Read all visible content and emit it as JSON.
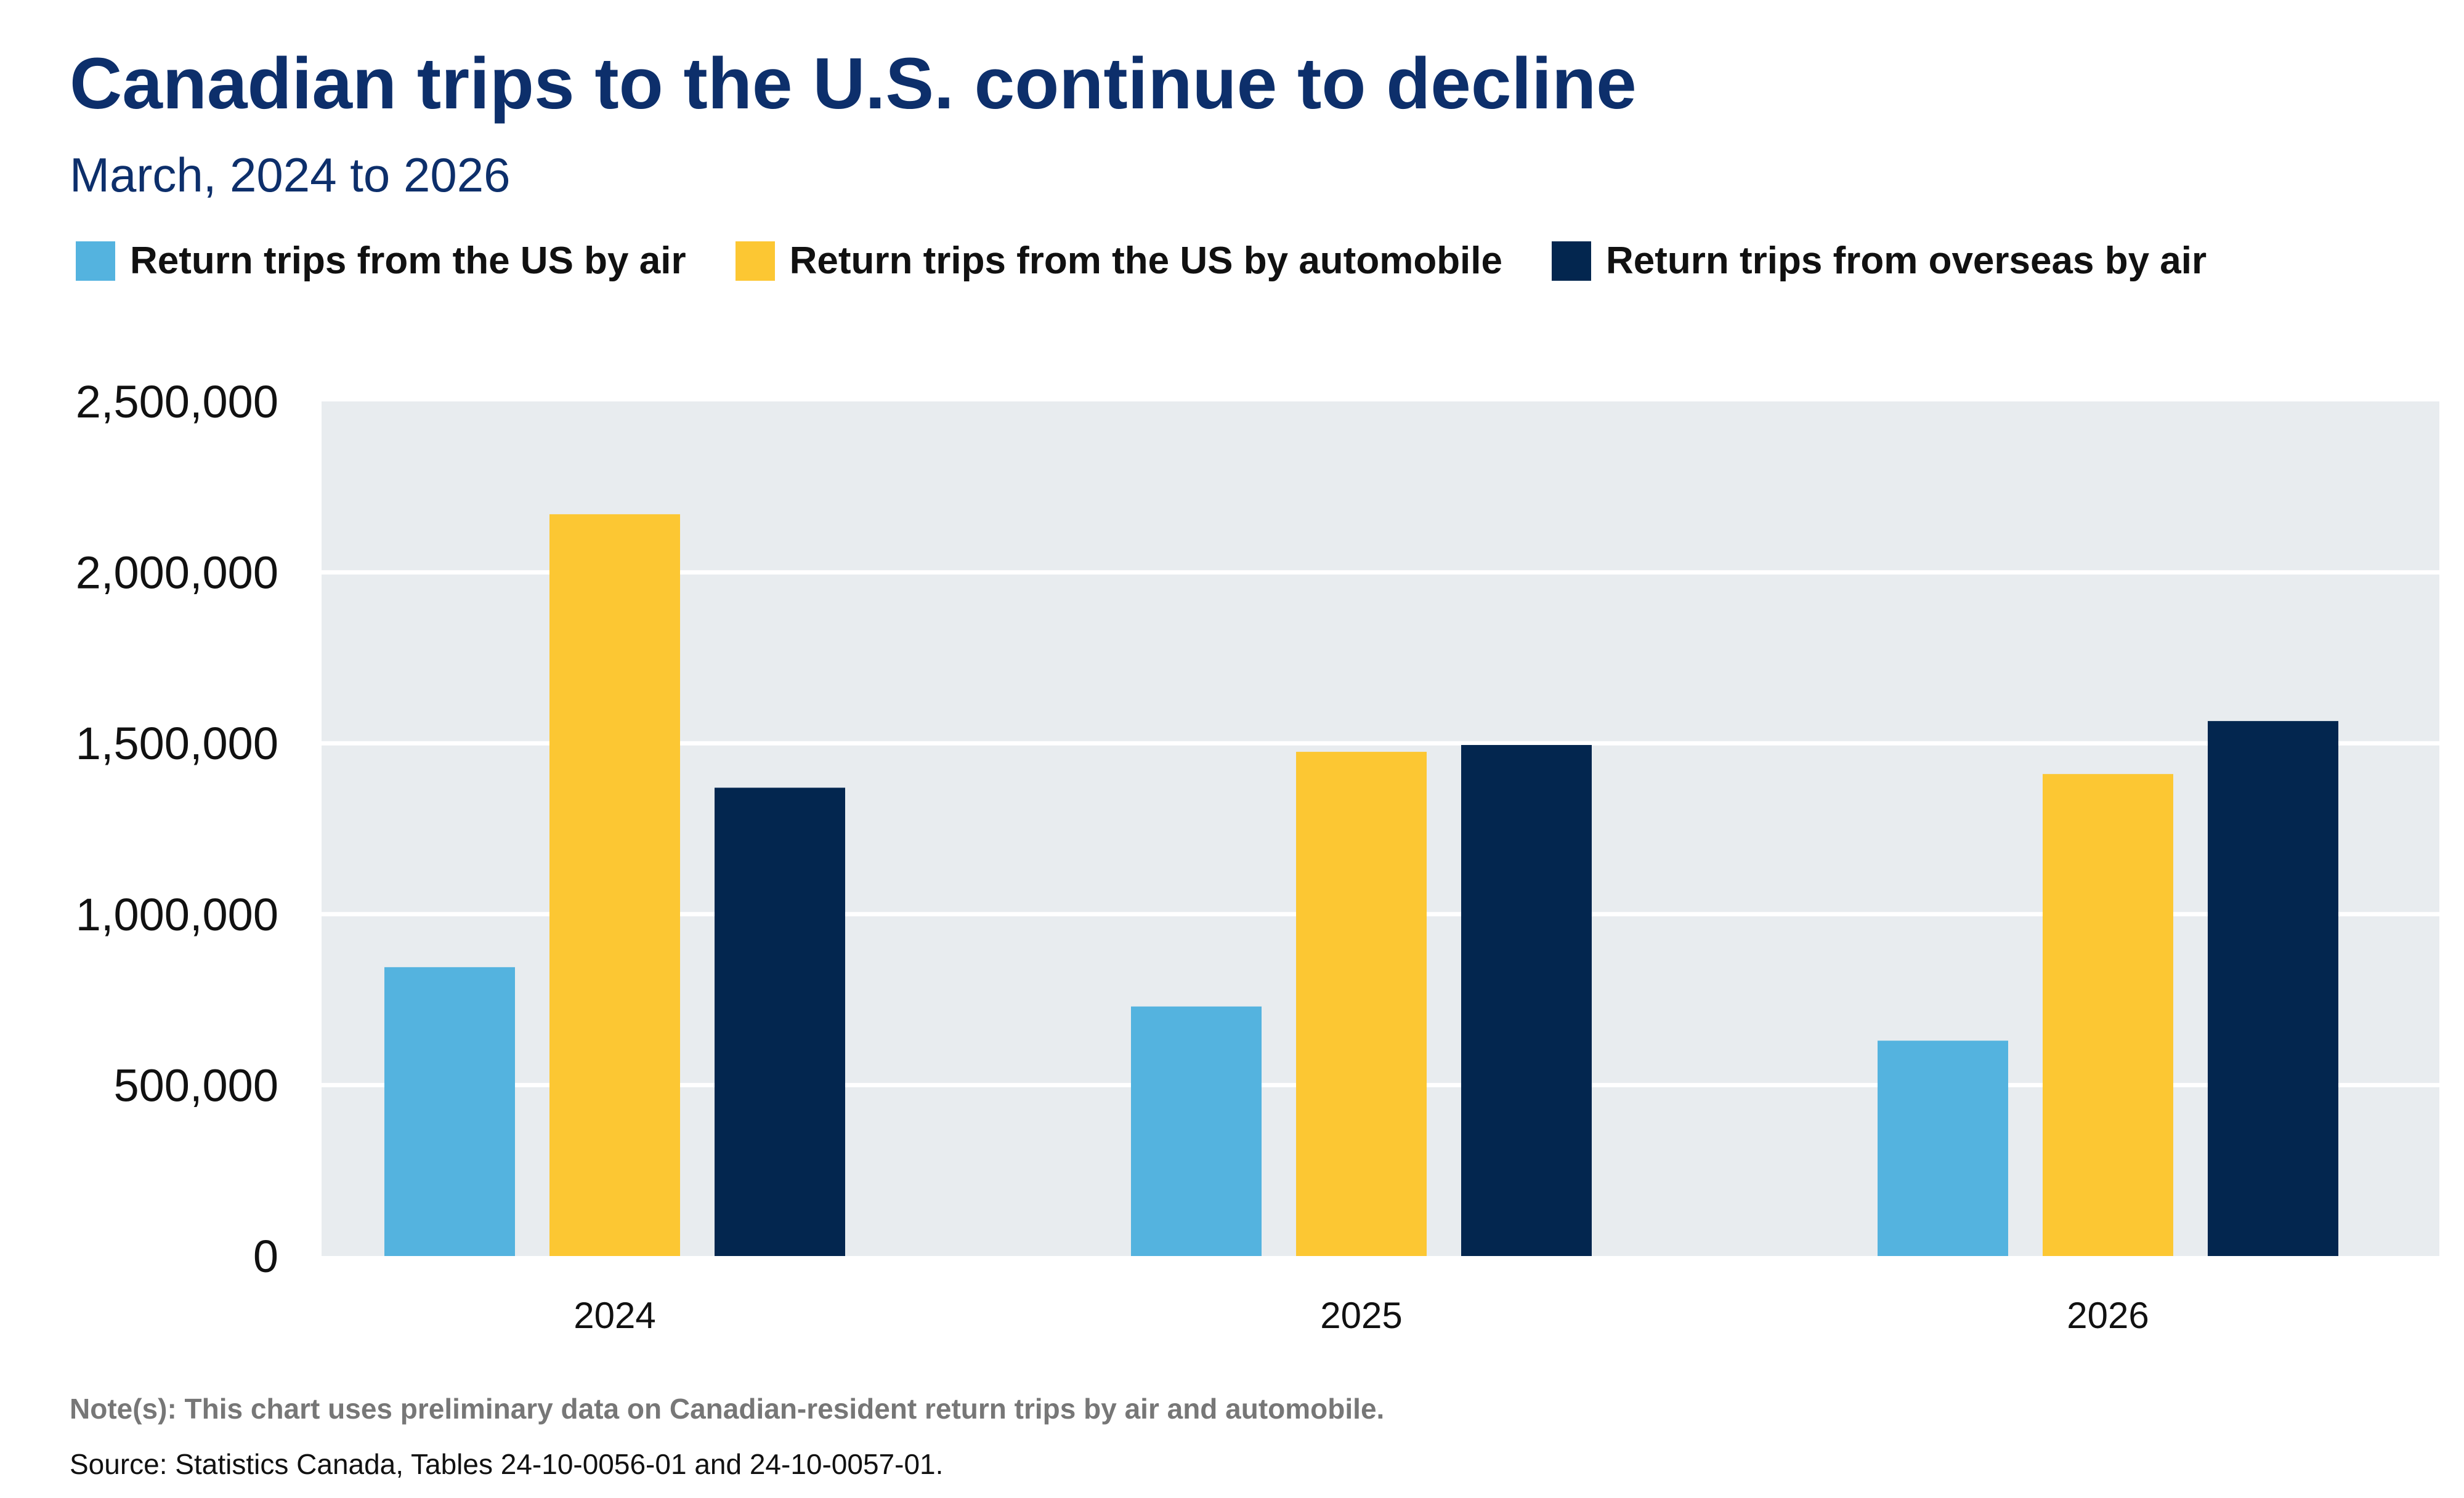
{
  "chart_data": {
    "type": "bar",
    "title": "Canadian trips to the U.S. continue to decline",
    "subtitle": "March, 2024 to 2026",
    "categories": [
      "2024",
      "2025",
      "2026"
    ],
    "series": [
      {
        "name": "Return trips from the US by air",
        "color": "#54b3df",
        "values": [
          845000,
          730000,
          630000
        ]
      },
      {
        "name": "Return trips from the US by automobile",
        "color": "#fcc733",
        "values": [
          2170000,
          1475000,
          1410000
        ]
      },
      {
        "name": "Return trips from overseas by air",
        "color": "#03264f",
        "values": [
          1370000,
          1495000,
          1565000
        ]
      }
    ],
    "xlabel": "",
    "ylabel": "",
    "ylim": [
      0,
      2500000
    ],
    "yticks": [
      0,
      500000,
      1000000,
      1500000,
      2000000,
      2500000
    ],
    "ytick_labels": [
      "0",
      "500,000",
      "1,000,000",
      "1,500,000",
      "2,000,000",
      "2,500,000"
    ],
    "grid": true,
    "legend_position": "top-left",
    "plot_background": "#e8ecef",
    "notes": "Note(s): This chart uses preliminary data on Canadian-resident return trips by air and automobile.",
    "source": "Source: Statistics Canada, Tables 24-10-0056-01 and 24-10-0057-01."
  }
}
